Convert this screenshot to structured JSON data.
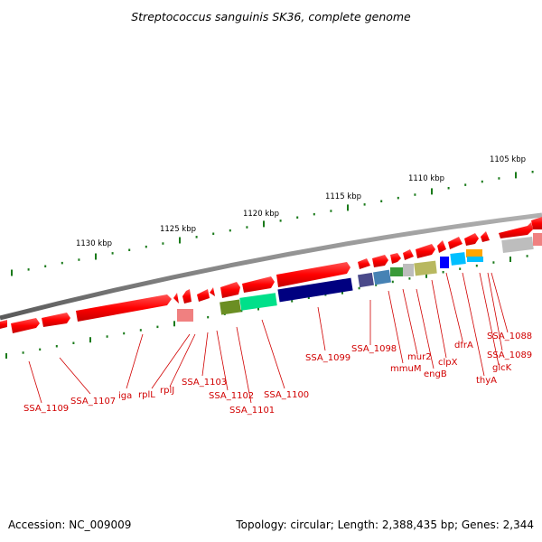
{
  "title": "Streptococcus sanguinis SK36, complete genome",
  "footer": {
    "accession": "Accession: NC_009009",
    "summary": "Topology: circular; Length: 2,388,435 bp; Genes: 2,344"
  },
  "scale_labels": [
    "1105 kbp",
    "1110 kbp",
    "1115 kbp",
    "1120 kbp",
    "1125 kbp",
    "1130 kbp"
  ],
  "gene_labels": [
    "SSA_1088",
    "SSA_1089",
    "glcK",
    "thyA",
    "dfrA",
    "clpX",
    "engB",
    "mur2",
    "mmuM",
    "SSA_1098",
    "SSA_1099",
    "SSA_1100",
    "SSA_1101",
    "SSA_1102",
    "SSA_1103",
    "rplJ",
    "rplL",
    "iga",
    "SSA_1107",
    "SSA_1109"
  ],
  "colors": {
    "backbone": "#7a7a7a",
    "gene_forward": "#ff0000",
    "tick": "#1a7a1a",
    "label": "#d10000",
    "cog_blue": "#000080",
    "cog_green": "#00e08a",
    "cog_olive": "#6b8e23",
    "cog_khaki": "#b8b860",
    "cog_slate": "#4a4a8a",
    "cog_steel": "#4682b4",
    "cog_cyan": "#00bfff",
    "cog_orange": "#ffa500",
    "cog_grey": "#bdbdbd",
    "cog_pink": "#f08080"
  }
}
